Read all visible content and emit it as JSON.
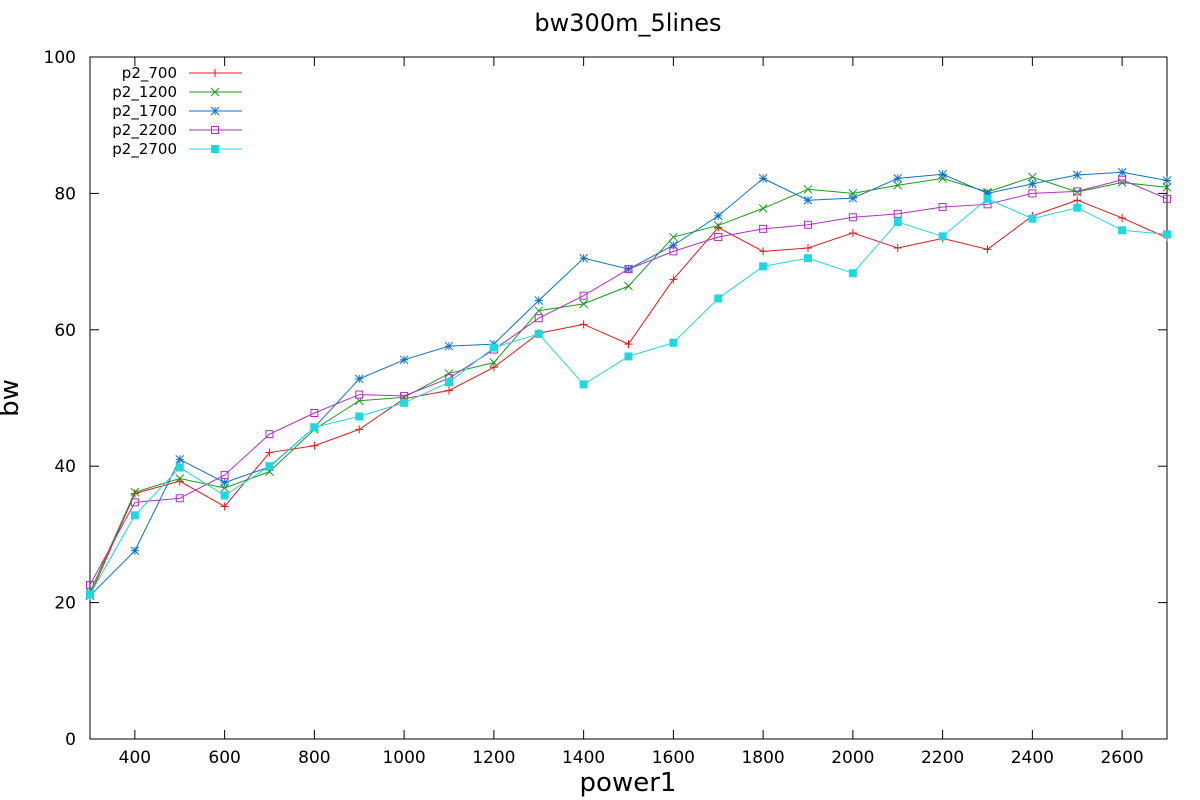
{
  "chart_data": {
    "type": "line",
    "title": "bw300m_5lines",
    "xlabel": "power1",
    "ylabel": "bw",
    "xlim": [
      300,
      2700
    ],
    "ylim": [
      0,
      100
    ],
    "x_ticks": [
      400,
      600,
      800,
      1000,
      1200,
      1400,
      1600,
      1800,
      2000,
      2200,
      2400,
      2600
    ],
    "y_ticks": [
      0,
      20,
      40,
      60,
      80,
      100
    ],
    "grid": false,
    "legend_position": "top-left",
    "x": [
      300,
      400,
      500,
      600,
      700,
      800,
      900,
      1000,
      1100,
      1200,
      1300,
      1400,
      1500,
      1600,
      1700,
      1800,
      1900,
      2000,
      2100,
      2200,
      2300,
      2400,
      2500,
      2600,
      2700
    ],
    "series": [
      {
        "name": "p2_700",
        "color": "#e41a1c",
        "marker": "plus",
        "values": [
          21.0,
          36.0,
          37.8,
          34.1,
          42.0,
          43.0,
          45.4,
          49.9,
          51.1,
          54.5,
          59.5,
          60.8,
          57.9,
          67.4,
          75.0,
          71.5,
          72.0,
          74.2,
          72.0,
          73.4,
          71.8,
          76.7,
          79.0,
          76.4,
          73.5
        ]
      },
      {
        "name": "p2_1200",
        "color": "#1a9c1a",
        "marker": "x",
        "values": [
          21.5,
          36.2,
          38.2,
          36.8,
          39.2,
          45.4,
          49.6,
          50.1,
          53.6,
          55.2,
          62.8,
          63.8,
          66.4,
          73.6,
          75.3,
          77.8,
          80.6,
          80.0,
          81.2,
          82.2,
          80.2,
          82.4,
          80.2,
          81.6,
          80.9
        ]
      },
      {
        "name": "p2_1700",
        "color": "#0e72c9",
        "marker": "star",
        "values": [
          21.0,
          27.6,
          41.0,
          37.6,
          39.9,
          45.7,
          52.8,
          55.6,
          57.6,
          57.9,
          64.3,
          70.5,
          68.9,
          72.4,
          76.7,
          82.2,
          79.0,
          79.3,
          82.2,
          82.8,
          80.0,
          81.4,
          82.7,
          83.1,
          81.9
        ]
      },
      {
        "name": "p2_2200",
        "color": "#b02ec4",
        "marker": "square-open",
        "values": [
          22.6,
          34.7,
          35.3,
          38.7,
          44.7,
          47.8,
          50.5,
          50.3,
          52.9,
          57.1,
          61.7,
          65.0,
          68.9,
          71.5,
          73.6,
          74.8,
          75.4,
          76.5,
          77.0,
          78.0,
          78.4,
          80.0,
          80.3,
          82.0,
          79.2
        ]
      },
      {
        "name": "p2_2700",
        "color": "#1ed8e0",
        "marker": "square-filled",
        "values": [
          21.2,
          32.8,
          39.8,
          35.7,
          40.0,
          45.7,
          47.3,
          49.3,
          52.3,
          57.4,
          59.4,
          52.0,
          56.1,
          58.1,
          64.6,
          69.3,
          70.5,
          68.3,
          75.8,
          73.7,
          79.2,
          76.3,
          77.9,
          74.6,
          74.0
        ]
      }
    ]
  }
}
